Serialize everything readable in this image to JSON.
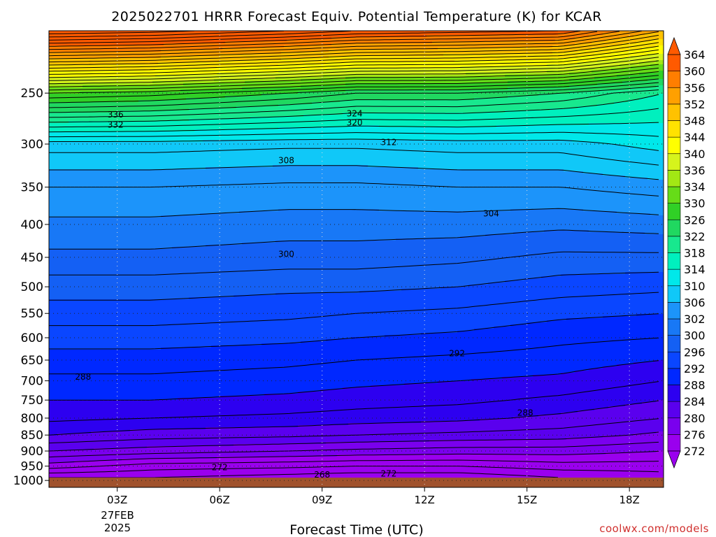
{
  "chart_data": {
    "type": "heatmap",
    "title": "2025022701 HRRR Forecast Equiv. Potential Temperature (K) for KCAR",
    "xlabel": "Forecast Time (UTC)",
    "ylabel": "",
    "x_range_hours_utc": [
      1,
      19
    ],
    "x_ticks": [
      {
        "hour": 3,
        "label": "03Z"
      },
      {
        "hour": 6,
        "label": "06Z"
      },
      {
        "hour": 9,
        "label": "09Z"
      },
      {
        "hour": 12,
        "label": "12Z"
      },
      {
        "hour": 15,
        "label": "15Z"
      },
      {
        "hour": 18,
        "label": "18Z"
      }
    ],
    "date_label": [
      "27FEB",
      "2025"
    ],
    "y_scale": "log-pressure",
    "y_range_hpa": [
      1025,
      200
    ],
    "y_ticks": [
      250,
      300,
      350,
      400,
      450,
      500,
      550,
      600,
      650,
      700,
      750,
      800,
      850,
      900,
      950,
      1000
    ],
    "grid": true,
    "ground_pressure_hpa": 990,
    "ground_color": "#a0522d",
    "colorbar": {
      "levels": [
        272,
        276,
        280,
        284,
        288,
        292,
        296,
        300,
        302,
        306,
        310,
        314,
        318,
        322,
        326,
        330,
        334,
        336,
        340,
        344,
        348,
        352,
        356,
        360,
        364
      ],
      "colors": [
        "#9a00ee",
        "#7a00ee",
        "#5a00ee",
        "#2d00f0",
        "#0028ff",
        "#0a46ff",
        "#1460f4",
        "#1878f6",
        "#1c94fa",
        "#10c8f8",
        "#00e8ea",
        "#00f0be",
        "#18e88e",
        "#20d860",
        "#30d026",
        "#66dc18",
        "#a2e814",
        "#d6f41c",
        "#ffff00",
        "#ffe200",
        "#ffc200",
        "#ffa000",
        "#ff7e00",
        "#ff5a00"
      ],
      "under_color": "#9a00ee",
      "over_color": "#ff5a00"
    },
    "theta_e_profiles": [
      {
        "hour": 1,
        "pressure_hpa": [
          990,
          950,
          900,
          850,
          800,
          750,
          700,
          650,
          600,
          550,
          500,
          450,
          400,
          350,
          300,
          250,
          200
        ],
        "theta_e_k": [
          270,
          275,
          280,
          284,
          286.5,
          288,
          289.5,
          291,
          293,
          295,
          297,
          299.5,
          301.5,
          304,
          309,
          330,
          370
        ]
      },
      {
        "hour": 4,
        "pressure_hpa": [
          990,
          950,
          900,
          850,
          800,
          750,
          700,
          650,
          600,
          550,
          500,
          450,
          400,
          350,
          300,
          250,
          200
        ],
        "theta_e_k": [
          270,
          273,
          279,
          283,
          286,
          288,
          289.5,
          291,
          293,
          295,
          297,
          299.5,
          301.5,
          304,
          309,
          329,
          369
        ]
      },
      {
        "hour": 8,
        "pressure_hpa": [
          990,
          950,
          900,
          850,
          800,
          750,
          700,
          650,
          600,
          550,
          500,
          450,
          400,
          350,
          300,
          250,
          200
        ],
        "theta_e_k": [
          269,
          272.5,
          278,
          282.5,
          285.5,
          287.5,
          289,
          290.5,
          292.5,
          294.5,
          296.5,
          299,
          301,
          303.5,
          308.5,
          326,
          366
        ]
      },
      {
        "hour": 10,
        "pressure_hpa": [
          990,
          950,
          900,
          850,
          800,
          750,
          700,
          650,
          600,
          550,
          500,
          450,
          400,
          350,
          300,
          250,
          200
        ],
        "theta_e_k": [
          268.5,
          272,
          277.5,
          282,
          285,
          287,
          288.5,
          290,
          292,
          294,
          296.5,
          299,
          301,
          303.5,
          308.5,
          324,
          364
        ]
      },
      {
        "hour": 13,
        "pressure_hpa": [
          990,
          950,
          900,
          850,
          800,
          750,
          700,
          650,
          600,
          550,
          500,
          450,
          400,
          350,
          300,
          250,
          200
        ],
        "theta_e_k": [
          268.5,
          272,
          277,
          281.5,
          284.5,
          286.5,
          288,
          289.5,
          291.5,
          293.5,
          296,
          298.5,
          301,
          304,
          309,
          324,
          363
        ]
      },
      {
        "hour": 16,
        "pressure_hpa": [
          990,
          950,
          900,
          850,
          800,
          750,
          700,
          650,
          600,
          550,
          500,
          450,
          400,
          350,
          300,
          250,
          200
        ],
        "theta_e_k": [
          270,
          273,
          277,
          281,
          283.5,
          285.5,
          287.5,
          289,
          290.5,
          292.5,
          295,
          297.5,
          300.5,
          304,
          309,
          322,
          362
        ]
      },
      {
        "hour": 19,
        "pressure_hpa": [
          990,
          950,
          900,
          850,
          800,
          750,
          700,
          650,
          600,
          550,
          500,
          450,
          400,
          350,
          300,
          250,
          200
        ],
        "theta_e_k": [
          271,
          273,
          276,
          279.5,
          282,
          284,
          286,
          288,
          290,
          292,
          294.5,
          297.5,
          301,
          305,
          311,
          318,
          352
        ]
      }
    ],
    "contour_labels": [
      {
        "value": "336",
        "hour": 2.95,
        "pressure_hpa": 270
      },
      {
        "value": "332",
        "hour": 2.95,
        "pressure_hpa": 280
      },
      {
        "value": "324",
        "hour": 9.95,
        "pressure_hpa": 269
      },
      {
        "value": "320",
        "hour": 9.95,
        "pressure_hpa": 278
      },
      {
        "value": "312",
        "hour": 10.95,
        "pressure_hpa": 298
      },
      {
        "value": "308",
        "hour": 7.95,
        "pressure_hpa": 318
      },
      {
        "value": "304",
        "hour": 13.95,
        "pressure_hpa": 385
      },
      {
        "value": "300",
        "hour": 7.95,
        "pressure_hpa": 445
      },
      {
        "value": "292",
        "hour": 12.95,
        "pressure_hpa": 635
      },
      {
        "value": "288",
        "hour": 2.0,
        "pressure_hpa": 690
      },
      {
        "value": "288",
        "hour": 14.95,
        "pressure_hpa": 785
      },
      {
        "value": "272",
        "hour": 6.0,
        "pressure_hpa": 955
      },
      {
        "value": "272",
        "hour": 10.95,
        "pressure_hpa": 976
      },
      {
        "value": "268",
        "hour": 9.0,
        "pressure_hpa": 980
      }
    ]
  },
  "credit": "coolwx.com/models"
}
